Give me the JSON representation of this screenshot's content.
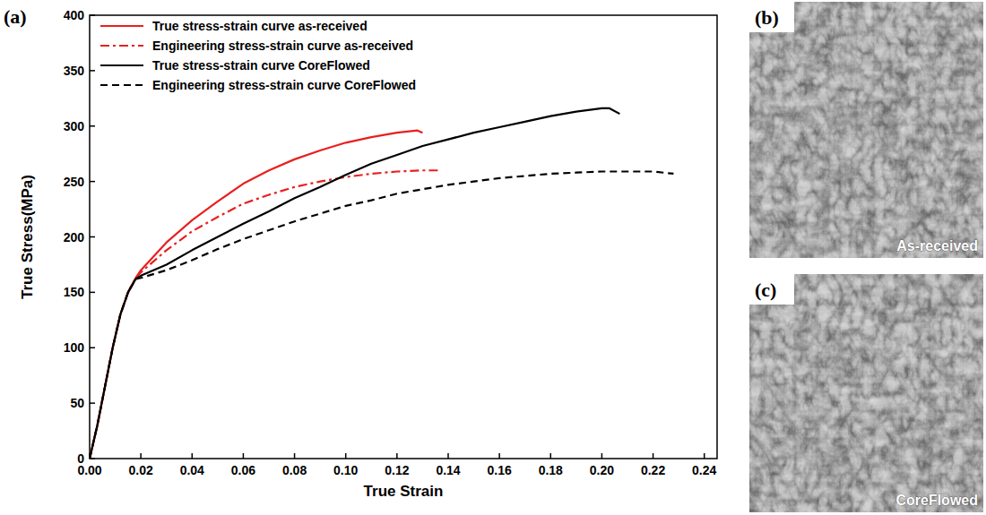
{
  "chart_data": {
    "type": "line",
    "panel": "(a)",
    "x_label": "True Strain",
    "y_label": "True Stress(MPa)",
    "xlim": [
      0,
      0.245
    ],
    "ylim": [
      0,
      400
    ],
    "xticks": [
      {
        "value": 0,
        "label": "0.00"
      },
      {
        "value": 0.02,
        "label": "0.02"
      },
      {
        "value": 0.04,
        "label": "0.04"
      },
      {
        "value": 0.06,
        "label": "0.06"
      },
      {
        "value": 0.08,
        "label": "0.08"
      },
      {
        "value": 0.1,
        "label": "0.10"
      },
      {
        "value": 0.12,
        "label": "0.12"
      },
      {
        "value": 0.14,
        "label": "0.14"
      },
      {
        "value": 0.16,
        "label": "0.16"
      },
      {
        "value": 0.18,
        "label": "0.18"
      },
      {
        "value": 0.2,
        "label": "0.20"
      },
      {
        "value": 0.22,
        "label": "0.22"
      },
      {
        "value": 0.24,
        "label": "0.24"
      }
    ],
    "yticks": [
      0,
      50,
      100,
      150,
      200,
      250,
      300,
      350,
      400
    ],
    "grid": false,
    "legend": "upper left",
    "series": [
      {
        "name": "True stress-strain curve as-received",
        "color": "#e8201f",
        "line_style": "solid",
        "x": [
          0,
          0.003,
          0.006,
          0.009,
          0.012,
          0.015,
          0.018,
          0.02,
          0.03,
          0.04,
          0.05,
          0.06,
          0.07,
          0.08,
          0.09,
          0.1,
          0.11,
          0.12,
          0.128,
          0.13
        ],
        "values": [
          0,
          30,
          65,
          100,
          130,
          150,
          163,
          170,
          195,
          215,
          232,
          248,
          260,
          270,
          278,
          285,
          290,
          294,
          296,
          294
        ]
      },
      {
        "name": "Engineering stress-strain curve as-received",
        "color": "#e8201f",
        "line_style": "dashdot",
        "x": [
          0,
          0.003,
          0.006,
          0.009,
          0.012,
          0.015,
          0.018,
          0.02,
          0.03,
          0.04,
          0.05,
          0.06,
          0.07,
          0.08,
          0.09,
          0.1,
          0.11,
          0.12,
          0.13,
          0.137
        ],
        "values": [
          0,
          30,
          65,
          100,
          130,
          150,
          163,
          168,
          188,
          205,
          218,
          230,
          238,
          245,
          250,
          254,
          257,
          259,
          260,
          260
        ]
      },
      {
        "name": "True stress-strain curve CoreFlowed",
        "color": "#000000",
        "line_style": "solid",
        "x": [
          0,
          0.003,
          0.006,
          0.009,
          0.012,
          0.015,
          0.018,
          0.02,
          0.03,
          0.04,
          0.05,
          0.06,
          0.07,
          0.08,
          0.09,
          0.1,
          0.11,
          0.12,
          0.13,
          0.14,
          0.15,
          0.16,
          0.17,
          0.18,
          0.19,
          0.2,
          0.203,
          0.207
        ],
        "values": [
          0,
          30,
          65,
          100,
          130,
          150,
          162,
          165,
          175,
          188,
          200,
          212,
          223,
          235,
          245,
          256,
          266,
          274,
          282,
          288,
          294,
          299,
          304,
          309,
          313,
          316,
          316,
          311
        ]
      },
      {
        "name": "Engineering stress-strain curve CoreFlowed",
        "color": "#000000",
        "line_style": "dashed",
        "x": [
          0,
          0.003,
          0.006,
          0.009,
          0.012,
          0.015,
          0.018,
          0.02,
          0.03,
          0.04,
          0.05,
          0.06,
          0.07,
          0.08,
          0.09,
          0.1,
          0.11,
          0.12,
          0.13,
          0.14,
          0.15,
          0.16,
          0.17,
          0.18,
          0.19,
          0.2,
          0.21,
          0.22,
          0.228
        ],
        "values": [
          0,
          30,
          65,
          100,
          130,
          150,
          162,
          163,
          170,
          179,
          189,
          198,
          206,
          214,
          221,
          228,
          233,
          239,
          243,
          247,
          250,
          253,
          255,
          257,
          258,
          259,
          259,
          259,
          257
        ]
      }
    ]
  },
  "images": [
    {
      "panel": "(b)",
      "caption": "As-received"
    },
    {
      "panel": "(c)",
      "caption": "CoreFlowed"
    }
  ]
}
